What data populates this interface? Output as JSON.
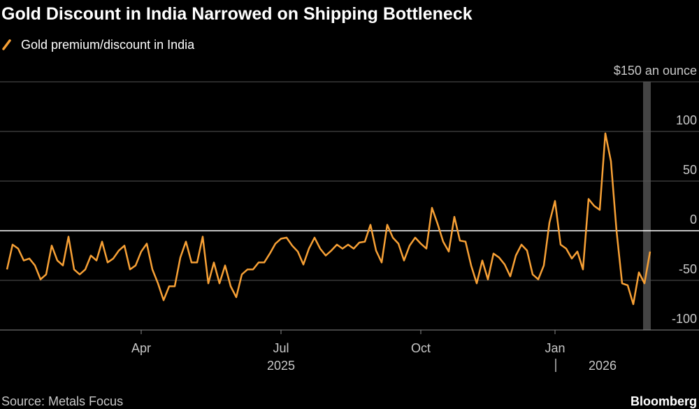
{
  "chart_data": {
    "type": "line",
    "title": "Gold Discount in India Narrowed on Shipping Bottleneck",
    "categories": [
      null,
      null,
      null,
      null,
      null,
      null,
      null,
      null,
      null,
      null,
      null,
      null,
      null,
      null,
      null,
      null,
      null,
      null,
      null,
      null,
      null,
      null,
      null,
      null,
      "Apr",
      null,
      null,
      null,
      null,
      null,
      null,
      null,
      null,
      null,
      null,
      null,
      null,
      null,
      null,
      null,
      null,
      null,
      null,
      null,
      null,
      null,
      null,
      null,
      null,
      "Jul",
      null,
      null,
      null,
      null,
      null,
      null,
      null,
      null,
      null,
      null,
      null,
      null,
      null,
      null,
      null,
      null,
      null,
      null,
      null,
      null,
      null,
      null,
      null,
      null,
      "Oct",
      null,
      null,
      null,
      null,
      null,
      null,
      null,
      null,
      null,
      null,
      null,
      null,
      null,
      null,
      null,
      null,
      null,
      null,
      null,
      null,
      null,
      null,
      null,
      "Jan",
      null,
      null,
      null,
      null,
      null,
      null,
      null,
      null,
      null,
      null,
      null,
      null,
      null,
      null,
      null,
      null,
      null
    ],
    "year_labels": [
      "2025",
      "2026"
    ],
    "series": [
      {
        "name": "Gold premium/discount in India",
        "color": "#f7a035",
        "values": [
          -39,
          -14,
          -18,
          -30,
          -28,
          -35,
          -49,
          -44,
          -15,
          -30,
          -35,
          -6,
          -39,
          -44,
          -39,
          -25,
          -30,
          -11,
          -32,
          -28,
          -20,
          -15,
          -39,
          -35,
          -21,
          -13,
          -39,
          -53,
          -70,
          -56,
          -56,
          -27,
          -11,
          -32,
          -32,
          -6,
          -53,
          -32,
          -53,
          -35,
          -56,
          -67,
          -44,
          -39,
          -39,
          -32,
          -32,
          -23,
          -13,
          -8,
          -7,
          -15,
          -21,
          -34,
          -18,
          -7,
          -18,
          -25,
          -20,
          -14,
          -18,
          -14,
          -18,
          -12,
          -11,
          6,
          -20,
          -32,
          6,
          -7,
          -13,
          -30,
          -15,
          -7,
          -13,
          -18,
          23,
          7,
          -11,
          -21,
          14,
          -10,
          -11,
          -35,
          -53,
          -30,
          -49,
          -23,
          -27,
          -34,
          -46,
          -25,
          -14,
          -20,
          -44,
          -49,
          -35,
          8,
          30,
          -14,
          -18,
          -28,
          -21,
          -39,
          32,
          25,
          21,
          98,
          70,
          0,
          -53,
          -55,
          -74,
          -42,
          -53,
          -21
        ]
      }
    ],
    "ylim": [
      -100,
      150
    ],
    "yticks": [
      -100,
      -50,
      0,
      50,
      100,
      {
        "value": 150,
        "label": "$150 an ounce"
      }
    ],
    "grid": true,
    "source": "Source: Metals Focus",
    "brand": "Bloomberg"
  }
}
